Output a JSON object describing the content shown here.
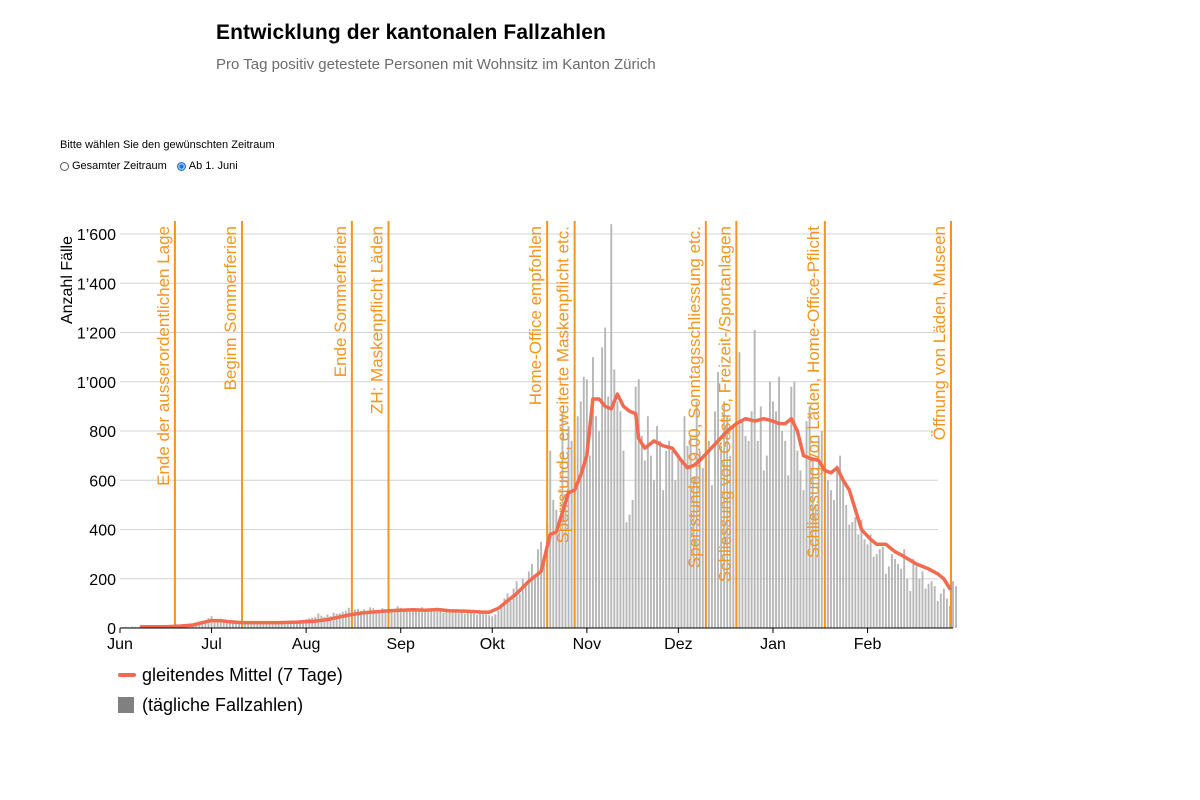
{
  "header": {
    "title": "Entwicklung der kantonalen Fallzahlen",
    "subtitle": "Pro Tag positiv getestete Personen mit Wohnsitz im Kanton Zürich"
  },
  "range_picker": {
    "label": "Bitte wählen Sie den gewünschten Zeitraum",
    "options": [
      {
        "label": "Gesamter Zeitraum",
        "selected": false
      },
      {
        "label": "Ab 1. Juni",
        "selected": true
      }
    ]
  },
  "legend": {
    "line_label": "gleitendes Mittel (7 Tage)",
    "bar_label": "(tägliche Fallzahlen)"
  },
  "colors": {
    "bars": "#b7b7b7",
    "bars_legend": "#808080",
    "line": "#f26a4f",
    "events": "#f4951f",
    "grid": "#d4d4d4"
  },
  "chart_data": {
    "type": "bar",
    "ylabel": "Anzahl Fälle",
    "ylim": [
      0,
      1600
    ],
    "yticks": [
      0,
      200,
      400,
      600,
      800,
      1000,
      1200,
      1400,
      1600
    ],
    "ytick_labels": [
      "0",
      "200",
      "400",
      "600",
      "800",
      "1’000",
      "1’200",
      "1’400",
      "1’600"
    ],
    "xlim_days": [
      0,
      273
    ],
    "months": [
      {
        "label": "Jun",
        "day": 0
      },
      {
        "label": "Jul",
        "day": 30
      },
      {
        "label": "Aug",
        "day": 61
      },
      {
        "label": "Sep",
        "day": 92
      },
      {
        "label": "Okt",
        "day": 122
      },
      {
        "label": "Nov",
        "day": 153
      },
      {
        "label": "Dez",
        "day": 183
      },
      {
        "label": "Jan",
        "day": 214
      },
      {
        "label": "Feb",
        "day": 245
      }
    ],
    "events": [
      {
        "day": 18,
        "label": "Ende der ausserordentlichen Lage"
      },
      {
        "day": 40,
        "label": "Beginn Sommerferien"
      },
      {
        "day": 76,
        "label": "Ende Sommerferien"
      },
      {
        "day": 88,
        "label": "ZH: Maskenpflicht Läden"
      },
      {
        "day": 140,
        "label": "Home-Office empfohlen"
      },
      {
        "day": 149,
        "label": "Sperrstunde, erweiterte Maskenpflicht etc."
      },
      {
        "day": 192,
        "label": "Sperrstunde 19.00, Sonntagsschliessung etc."
      },
      {
        "day": 202,
        "label": "Schliessung von Gastro, Freizeit-/Sportanlagen"
      },
      {
        "day": 231,
        "label": "Schliessung von Läden, Home-Office-Pflicht"
      },
      {
        "day": 273,
        "label": "Öffnung von Läden, Museen"
      }
    ],
    "series": [
      {
        "name": "tägliche Fallzahlen",
        "kind": "bar",
        "start_day": 1,
        "values": [
          4,
          5,
          3,
          6,
          5,
          4,
          7,
          6,
          5,
          8,
          6,
          7,
          5,
          9,
          8,
          6,
          10,
          9,
          8,
          12,
          10,
          11,
          14,
          13,
          18,
          16,
          22,
          30,
          40,
          48,
          35,
          30,
          26,
          28,
          22,
          20,
          24,
          26,
          18,
          21,
          23,
          20,
          22,
          25,
          19,
          24,
          18,
          22,
          26,
          20,
          24,
          23,
          28,
          21,
          26,
          30,
          24,
          22,
          28,
          33,
          36,
          40,
          42,
          45,
          60,
          50,
          45,
          55,
          48,
          62,
          58,
          60,
          66,
          70,
          82,
          64,
          75,
          78,
          70,
          76,
          68,
          84,
          80,
          66,
          72,
          80,
          70,
          74,
          68,
          78,
          88,
          82,
          70,
          76,
          72,
          80,
          78,
          74,
          84,
          72,
          66,
          70,
          78,
          80,
          74,
          62,
          66,
          70,
          64,
          72,
          60,
          68,
          58,
          66,
          64,
          58,
          54,
          62,
          60,
          56,
          52,
          48,
          55,
          70,
          85,
          120,
          140,
          110,
          160,
          190,
          140,
          200,
          170,
          230,
          260,
          210,
          320,
          350,
          280,
          430,
          720,
          520,
          480,
          400,
          880,
          540,
          820,
          760,
          700,
          860,
          920,
          1020,
          1010,
          700,
          1100,
          860,
          800,
          1140,
          1220,
          940,
          1640,
          1050,
          920,
          880,
          720,
          430,
          460,
          520,
          980,
          1010,
          780,
          680,
          860,
          700,
          600,
          820,
          760,
          560,
          720,
          760,
          720,
          600,
          700,
          680,
          860,
          740,
          780,
          610,
          920,
          720,
          650,
          780,
          760,
          580,
          880,
          1040,
          740,
          920,
          860,
          700,
          820,
          980,
          1120,
          840,
          780,
          760,
          880,
          1210,
          760,
          900,
          640,
          700,
          1000,
          920,
          880,
          1020,
          800,
          760,
          620,
          980,
          1000,
          720,
          640,
          560,
          840,
          900,
          680,
          500,
          780,
          800,
          720,
          600,
          560,
          520,
          660,
          700,
          600,
          500,
          420,
          430,
          450,
          380,
          440,
          360,
          340,
          380,
          290,
          300,
          320,
          330,
          220,
          250,
          300,
          280,
          260,
          240,
          320,
          200,
          150,
          280,
          250,
          200,
          230,
          160,
          180,
          190,
          170,
          110,
          140,
          160,
          120,
          90,
          190,
          170
        ]
      },
      {
        "name": "gleitendes Mittel (7 Tage)",
        "kind": "line",
        "points": [
          [
            7,
            5
          ],
          [
            15,
            5
          ],
          [
            20,
            8
          ],
          [
            24,
            12
          ],
          [
            27,
            22
          ],
          [
            30,
            30
          ],
          [
            33,
            30
          ],
          [
            36,
            25
          ],
          [
            40,
            22
          ],
          [
            45,
            22
          ],
          [
            52,
            22
          ],
          [
            58,
            24
          ],
          [
            64,
            28
          ],
          [
            68,
            34
          ],
          [
            72,
            45
          ],
          [
            76,
            55
          ],
          [
            80,
            62
          ],
          [
            84,
            66
          ],
          [
            88,
            70
          ],
          [
            92,
            72
          ],
          [
            96,
            74
          ],
          [
            100,
            72
          ],
          [
            104,
            75
          ],
          [
            108,
            70
          ],
          [
            114,
            68
          ],
          [
            118,
            65
          ],
          [
            121,
            64
          ],
          [
            124,
            80
          ],
          [
            127,
            110
          ],
          [
            130,
            140
          ],
          [
            134,
            190
          ],
          [
            138,
            230
          ],
          [
            141,
            380
          ],
          [
            143,
            390
          ],
          [
            145,
            470
          ],
          [
            147,
            550
          ],
          [
            149,
            560
          ],
          [
            151,
            620
          ],
          [
            153,
            700
          ],
          [
            155,
            930
          ],
          [
            157,
            930
          ],
          [
            159,
            900
          ],
          [
            161,
            890
          ],
          [
            163,
            950
          ],
          [
            165,
            900
          ],
          [
            167,
            880
          ],
          [
            169,
            870
          ],
          [
            170,
            770
          ],
          [
            172,
            730
          ],
          [
            175,
            760
          ],
          [
            178,
            740
          ],
          [
            181,
            730
          ],
          [
            184,
            680
          ],
          [
            186,
            650
          ],
          [
            188,
            660
          ],
          [
            190,
            680
          ],
          [
            193,
            720
          ],
          [
            196,
            760
          ],
          [
            199,
            800
          ],
          [
            202,
            830
          ],
          [
            205,
            850
          ],
          [
            208,
            840
          ],
          [
            211,
            850
          ],
          [
            214,
            840
          ],
          [
            216,
            830
          ],
          [
            218,
            830
          ],
          [
            220,
            850
          ],
          [
            222,
            800
          ],
          [
            224,
            700
          ],
          [
            226,
            690
          ],
          [
            229,
            680
          ],
          [
            231,
            640
          ],
          [
            233,
            630
          ],
          [
            235,
            650
          ],
          [
            237,
            600
          ],
          [
            239,
            560
          ],
          [
            241,
            480
          ],
          [
            243,
            400
          ],
          [
            246,
            360
          ],
          [
            248,
            340
          ],
          [
            251,
            340
          ],
          [
            254,
            310
          ],
          [
            257,
            290
          ],
          [
            261,
            260
          ],
          [
            265,
            240
          ],
          [
            268,
            220
          ],
          [
            270,
            200
          ],
          [
            272,
            160
          ]
        ]
      }
    ]
  }
}
